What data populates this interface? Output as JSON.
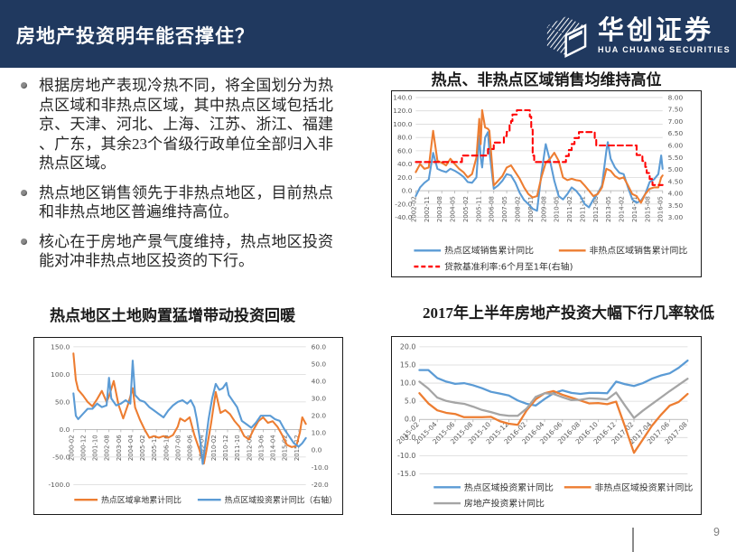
{
  "header": {
    "title": "房地产投资明年能否撑住？",
    "logo": {
      "cn": "华创证券",
      "en": "HUA CHUANG SECURITIES"
    }
  },
  "bullets": [
    "根据房地产表现冷热不同，将全国划分为热点区域和非热点区域，其中热点区域包括北京、天津、河北、上海、江苏、浙江、福建、广东，其余23个省级行政单位全部归入非热点区域。",
    "热点地区销售领先于非热点地区，目前热点和非热点地区普遍维持高位。",
    "核心在于房地产景气度维持，热点地区投资能对冲非热点地区投资的下行。"
  ],
  "colors": {
    "header_bg": "#20395f",
    "blue": "#5B9BD5",
    "orange": "#ED7D31",
    "gray": "#A5A5A5",
    "red": "#FF0000",
    "grid": "#d9d9d9",
    "axis_text": "#595959"
  },
  "chart_data": [
    {
      "type": "line",
      "title": "热点、非热点区域销售均维持高位",
      "x_unit": "months since 2002-02",
      "x_range": [
        0,
        171
      ],
      "grid": true,
      "legend_position": "bottom",
      "left_axis": {
        "min": -40,
        "max": 140,
        "labels": [
          "140.0",
          "120.0",
          "100.0",
          "80.0",
          "60.0",
          "40.0",
          "20.0",
          "0.0",
          "-20.0",
          "-40.0"
        ]
      },
      "right_axis": {
        "min": 3.0,
        "max": 8.0,
        "labels": [
          "8.00",
          "7.50",
          "7.00",
          "6.50",
          "6.00",
          "5.50",
          "5.00",
          "4.50",
          "4.00",
          "3.50",
          "3.00"
        ]
      },
      "x_ticks": {
        "positions": [
          0,
          9,
          18,
          27,
          36,
          45,
          54,
          63,
          72,
          81,
          90,
          99,
          108,
          117,
          126,
          135,
          144,
          153,
          162,
          171
        ],
        "labels": [
          "2002-02",
          "2002-11",
          "2003-08",
          "2004-05",
          "2005-02",
          "2005-11",
          "2006-08",
          "2007-05",
          "2008-02",
          "2008-11",
          "2009-08",
          "2010-05",
          "2011-02",
          "2011-11",
          "2012-08",
          "2013-05",
          "2014-02",
          "2014-11",
          "2015-08",
          "2016-05"
        ]
      },
      "series": [
        {
          "name": "热点区域销售累计同比",
          "color": "#5B9BD5",
          "axis": "left",
          "dash": false,
          "x": [
            0,
            3,
            6,
            9,
            12,
            15,
            18,
            21,
            24,
            27,
            30,
            33,
            36,
            39,
            42,
            44,
            45,
            46,
            48,
            50,
            51,
            54,
            57,
            60,
            63,
            66,
            69,
            72,
            75,
            78,
            81,
            84,
            87,
            90,
            93,
            96,
            99,
            102,
            105,
            108,
            111,
            114,
            117,
            120,
            123,
            126,
            129,
            132,
            133,
            135,
            138,
            141,
            144,
            147,
            150,
            153,
            156,
            159,
            162,
            165,
            168,
            170,
            171
          ],
          "v": [
            -8,
            5,
            12,
            17,
            57,
            33,
            30,
            28,
            33,
            30,
            26,
            21,
            13,
            12,
            20,
            83,
            50,
            35,
            80,
            88,
            60,
            3,
            8,
            15,
            25,
            23,
            12,
            -3,
            -14,
            -20,
            -27,
            -30,
            25,
            70,
            45,
            15,
            -8,
            -13,
            -5,
            5,
            0,
            -8,
            -20,
            -25,
            -13,
            -4,
            8,
            60,
            73,
            48,
            35,
            27,
            25,
            5,
            -13,
            -18,
            -15,
            -5,
            13,
            17,
            25,
            53,
            33
          ]
        },
        {
          "name": "非热点区域销售累计同比",
          "color": "#ED7D31",
          "axis": "left",
          "dash": false,
          "x": [
            0,
            3,
            6,
            9,
            12,
            15,
            18,
            21,
            24,
            27,
            30,
            33,
            36,
            39,
            42,
            44,
            45,
            46,
            48,
            50,
            51,
            54,
            57,
            60,
            63,
            66,
            69,
            72,
            75,
            78,
            81,
            84,
            87,
            90,
            93,
            96,
            99,
            102,
            105,
            108,
            111,
            114,
            117,
            120,
            123,
            126,
            129,
            132,
            133,
            135,
            138,
            141,
            144,
            147,
            150,
            153,
            156,
            159,
            162,
            165,
            168,
            170,
            171
          ],
          "v": [
            28,
            40,
            33,
            35,
            90,
            45,
            42,
            38,
            48,
            40,
            33,
            28,
            20,
            25,
            50,
            108,
            70,
            121,
            95,
            93,
            90,
            8,
            15,
            22,
            35,
            38,
            28,
            18,
            5,
            -5,
            -10,
            -8,
            20,
            42,
            48,
            57,
            45,
            20,
            16,
            18,
            16,
            15,
            8,
            0,
            -8,
            -5,
            5,
            33,
            32,
            30,
            22,
            18,
            20,
            8,
            -5,
            -8,
            -18,
            -5,
            3,
            5,
            5,
            20,
            23
          ]
        },
        {
          "name": "贷款基准利率:6个月至1年(右轴)",
          "color": "#FF0000",
          "axis": "right",
          "dash": true,
          "x": [
            0,
            32,
            32,
            50,
            50,
            54,
            54,
            61,
            61,
            63,
            63,
            65,
            65,
            66,
            66,
            67,
            67,
            70,
            70,
            79,
            79,
            80,
            80,
            81,
            81,
            82,
            82,
            104,
            104,
            106,
            106,
            108,
            108,
            110,
            110,
            113,
            113,
            124,
            124,
            125,
            125,
            153,
            153,
            157,
            157,
            159,
            159,
            160,
            160,
            162,
            162,
            164,
            164,
            171
          ],
          "v": [
            5.31,
            5.31,
            5.58,
            5.58,
            5.85,
            5.85,
            6.12,
            6.12,
            6.39,
            6.39,
            6.57,
            6.57,
            6.84,
            6.84,
            7.02,
            7.02,
            7.29,
            7.29,
            7.47,
            7.47,
            7.2,
            7.2,
            6.66,
            6.66,
            5.58,
            5.58,
            5.31,
            5.31,
            5.56,
            5.56,
            5.81,
            5.81,
            6.06,
            6.06,
            6.31,
            6.31,
            6.56,
            6.56,
            6.31,
            6.31,
            6.0,
            6.0,
            5.6,
            5.6,
            5.35,
            5.35,
            5.1,
            5.1,
            4.85,
            4.85,
            4.6,
            4.6,
            4.35,
            4.35
          ]
        }
      ]
    },
    {
      "type": "line",
      "title": "热点地区土地购置猛增带动投资回暖",
      "x_unit": "months since 2000-02",
      "x_range": [
        0,
        196
      ],
      "grid": true,
      "legend_position": "bottom",
      "left_axis": {
        "min": -100,
        "max": 150,
        "labels": [
          "150.0",
          "100.0",
          "50.0",
          "0.0",
          "-50.0",
          "-100.0"
        ]
      },
      "right_axis": {
        "min": -20,
        "max": 60,
        "labels": [
          "60.0",
          "50.0",
          "40.0",
          "30.0",
          "20.0",
          "10.0",
          "0.0",
          "-10.0",
          "-20.0"
        ]
      },
      "x_ticks": {
        "positions": [
          0,
          10,
          20,
          30,
          40,
          50,
          60,
          70,
          80,
          90,
          100,
          110,
          120,
          130,
          140,
          150,
          160,
          170,
          180,
          190
        ],
        "labels": [
          "2000-02",
          "2000-12",
          "2001-10",
          "2002-08",
          "2003-06",
          "2004-04",
          "2005-02",
          "2005-12",
          "2006-10",
          "2007-08",
          "2008-06",
          "2009-04",
          "2010-02",
          "2010-12",
          "2011-10",
          "2012-08",
          "2013-06",
          "2014-04",
          "2015-02",
          "2015-12"
        ]
      },
      "series": [
        {
          "name": "热点区域拿地累计同比",
          "color": "#ED7D31",
          "axis": "left",
          "dash": false,
          "x": [
            0,
            2,
            4,
            8,
            12,
            16,
            20,
            24,
            28,
            30,
            34,
            38,
            42,
            46,
            50,
            52,
            56,
            60,
            64,
            68,
            72,
            76,
            80,
            84,
            88,
            90,
            94,
            98,
            102,
            106,
            108,
            110,
            112,
            116,
            120,
            124,
            128,
            132,
            136,
            140,
            144,
            148,
            152,
            156,
            160,
            164,
            168,
            172,
            176,
            180,
            184,
            188,
            191,
            193,
            196
          ],
          "v": [
            138,
            90,
            72,
            62,
            50,
            42,
            55,
            70,
            50,
            60,
            88,
            45,
            20,
            45,
            75,
            40,
            18,
            0,
            -15,
            -12,
            -15,
            -12,
            -15,
            -10,
            5,
            20,
            15,
            22,
            -10,
            -35,
            -50,
            -62,
            -40,
            10,
            68,
            30,
            35,
            28,
            15,
            5,
            -12,
            -18,
            0,
            15,
            22,
            12,
            15,
            5,
            -10,
            -28,
            -32,
            -30,
            -5,
            22,
            10
          ]
        },
        {
          "name": "热点区域投资累计同比（右轴）",
          "color": "#5B9BD5",
          "axis": "right",
          "dash": false,
          "x": [
            0,
            2,
            4,
            8,
            12,
            16,
            20,
            24,
            28,
            30,
            32,
            36,
            40,
            44,
            48,
            50,
            52,
            56,
            60,
            64,
            68,
            72,
            76,
            80,
            84,
            88,
            92,
            96,
            99,
            102,
            104,
            107,
            109,
            111,
            114,
            117,
            120,
            123,
            126,
            129,
            131,
            134,
            138,
            142,
            146,
            150,
            154,
            158,
            162,
            166,
            170,
            174,
            178,
            182,
            186,
            190,
            193,
            196
          ],
          "v": [
            33,
            20,
            18,
            21,
            24,
            24,
            27,
            25,
            26,
            42,
            30,
            26,
            27,
            29,
            27,
            52,
            32,
            29,
            28,
            25,
            23,
            21,
            19,
            23,
            26,
            28,
            29,
            27,
            29,
            25,
            18,
            5,
            -8,
            2,
            18,
            30,
            38.5,
            35,
            36,
            39,
            32,
            29,
            25,
            17,
            15,
            13,
            16,
            20,
            20,
            20,
            18,
            17,
            12,
            8,
            4,
            2,
            4,
            7
          ]
        }
      ]
    },
    {
      "type": "line",
      "title": "2017年上半年房地产投资大幅下行几率较低",
      "x_unit": "months since 2015-02",
      "x_range": [
        0,
        30
      ],
      "grid": true,
      "legend_position": "bottom",
      "left_axis": {
        "min": -15,
        "max": 20,
        "labels": [
          "20.0",
          "15.0",
          "10.0",
          "5.0",
          "0.0",
          "-5.0",
          "-10.0",
          "-15.0"
        ]
      },
      "right_axis": null,
      "x_ticks": {
        "positions": [
          0,
          2,
          4,
          6,
          8,
          10,
          12,
          14,
          16,
          18,
          20,
          22,
          24,
          26,
          28,
          30
        ],
        "labels": [
          "2015-02",
          "2015-04",
          "2015-06",
          "2015-08",
          "2015-10",
          "2015-12",
          "2016-02",
          "2016-04",
          "2016-06",
          "2016-08",
          "2016-10",
          "2016-12",
          "2017-02",
          "2017-04",
          "2017-06",
          "2017-08"
        ]
      },
      "series": [
        {
          "name": "热点区域投资累计同比",
          "color": "#5B9BD5",
          "axis": "left",
          "dash": false,
          "x": [
            0,
            1,
            2,
            3,
            4,
            5,
            6,
            7,
            8,
            9,
            10,
            11,
            12,
            13,
            14,
            15,
            16,
            17,
            18,
            19,
            20,
            21,
            22,
            23,
            24,
            25,
            26,
            27,
            28,
            29,
            30
          ],
          "v": [
            13.6,
            13.6,
            11.4,
            10.4,
            9.8,
            10.0,
            9.4,
            8.6,
            7.6,
            7.1,
            6.6,
            5.2,
            4.3,
            3.8,
            5.6,
            7.2,
            8.0,
            7.3,
            7.0,
            7.3,
            7.3,
            7.2,
            10.4,
            9.7,
            9.2,
            10.0,
            11.2,
            12.1,
            12.7,
            14.2,
            16.2
          ]
        },
        {
          "name": "非热点区域投资累计同比",
          "color": "#ED7D31",
          "axis": "left",
          "dash": false,
          "x": [
            0,
            1,
            2,
            3,
            4,
            5,
            6,
            7,
            8,
            9,
            10,
            11,
            12,
            13,
            14,
            15,
            16,
            17,
            18,
            19,
            20,
            21,
            22,
            23,
            24,
            25,
            26,
            27,
            28,
            29,
            30
          ],
          "v": [
            7.2,
            4.4,
            2.5,
            1.8,
            1.5,
            0.6,
            0.6,
            0.6,
            0.7,
            -0.5,
            -1.2,
            -1.5,
            2.5,
            5.5,
            7.2,
            7.8,
            6.8,
            6.0,
            5.2,
            4.4,
            4.5,
            4.2,
            4.9,
            -2.0,
            -9.2,
            -5.5,
            -1.8,
            1.2,
            3.8,
            4.8,
            7.0
          ]
        },
        {
          "name": "房地产投资累计同比",
          "color": "#A5A5A5",
          "axis": "left",
          "dash": false,
          "x": [
            0,
            1,
            2,
            3,
            4,
            5,
            6,
            7,
            8,
            9,
            10,
            11,
            12,
            13,
            14,
            15,
            16,
            17,
            18,
            19,
            20,
            21,
            22,
            23,
            24,
            25,
            26,
            27,
            28,
            29,
            30
          ],
          "v": [
            10.4,
            8.5,
            6.0,
            5.1,
            4.6,
            4.3,
            3.5,
            2.6,
            2.0,
            1.3,
            1.0,
            1.0,
            3.0,
            6.2,
            7.2,
            7.0,
            6.1,
            5.3,
            5.4,
            5.8,
            5.7,
            5.5,
            7.4,
            3.8,
            0.4,
            2.4,
            4.2,
            6.0,
            7.8,
            9.5,
            11.2
          ]
        }
      ]
    }
  ],
  "footer": {
    "page_number": "9"
  }
}
